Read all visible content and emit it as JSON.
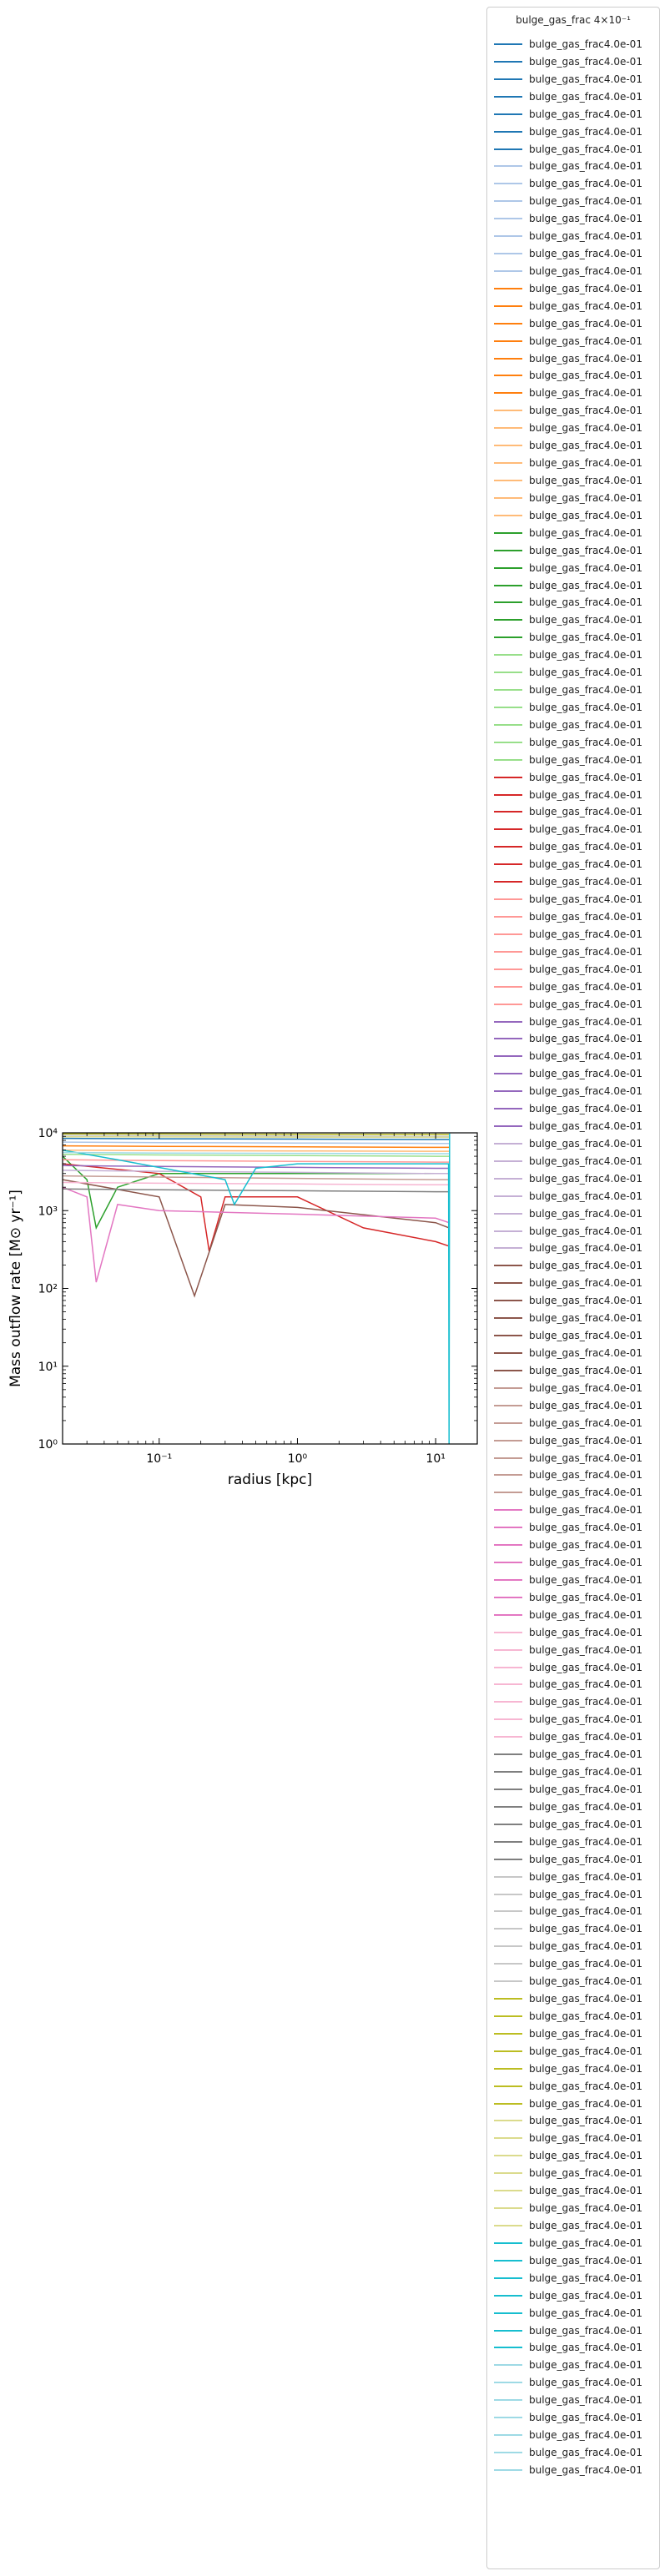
{
  "chart_data": {
    "type": "line",
    "xlabel": "radius [kpc]",
    "ylabel": "Mass outflow rate [M⊙ yr⁻¹]",
    "x_scale": "log",
    "y_scale": "log",
    "xlim": [
      0.02,
      20
    ],
    "ylim": [
      1,
      10000
    ],
    "x_tick_labels": [
      "10⁻¹",
      "10⁰",
      "10¹"
    ],
    "y_tick_labels": [
      "10⁰",
      "10¹",
      "10²",
      "10³",
      "10⁴"
    ],
    "legend": {
      "title": "bulge_gas_frac 4×10⁻¹",
      "placement": "outside right",
      "entry_label": "bulge_gas_frac4.0e-01",
      "entry_count": 140
    },
    "palette": [
      "#1f77b4",
      "#aec7e8",
      "#ff7f0e",
      "#ffbb78",
      "#2ca02c",
      "#98df8a",
      "#d62728",
      "#ff9896",
      "#9467bd",
      "#c5b0d5",
      "#8c564b",
      "#c49c94",
      "#e377c2",
      "#f7b6d2",
      "#7f7f7f",
      "#c7c7c7",
      "#bcbd22",
      "#dbdb8d",
      "#17becf",
      "#9edae5"
    ],
    "series": [
      {
        "color": "#1f77b4",
        "x": [
          0.02,
          0.1,
          1,
          10,
          12.5
        ],
        "y": [
          8500,
          8400,
          8300,
          8200,
          8200
        ]
      },
      {
        "color": "#aec7e8",
        "x": [
          0.02,
          0.1,
          1,
          10,
          12.5
        ],
        "y": [
          7600,
          7500,
          7400,
          7300,
          7300
        ]
      },
      {
        "color": "#ff7f0e",
        "x": [
          0.02,
          0.1,
          1,
          10,
          12.5
        ],
        "y": [
          6800,
          6700,
          6600,
          6500,
          6500
        ]
      },
      {
        "color": "#ffbb78",
        "x": [
          0.02,
          0.1,
          1,
          10,
          12.5
        ],
        "y": [
          6000,
          5900,
          5850,
          5800,
          5800
        ]
      },
      {
        "color": "#2ca02c",
        "x": [
          0.02,
          0.03,
          0.035,
          0.05,
          0.1,
          1,
          10,
          12.5
        ],
        "y": [
          5000,
          2500,
          600,
          2000,
          3000,
          3000,
          3000,
          3000
        ]
      },
      {
        "color": "#98df8a",
        "x": [
          0.02,
          0.1,
          1,
          10,
          12.5
        ],
        "y": [
          5300,
          5200,
          5100,
          5000,
          5000
        ]
      },
      {
        "color": "#d62728",
        "x": [
          0.02,
          0.1,
          0.2,
          0.23,
          0.3,
          1,
          3,
          10,
          12.5
        ],
        "y": [
          4000,
          3000,
          1500,
          300,
          1500,
          1500,
          600,
          400,
          350
        ]
      },
      {
        "color": "#ff9896",
        "x": [
          0.02,
          0.1,
          1,
          10,
          12.5
        ],
        "y": [
          4500,
          4400,
          4300,
          4200,
          4200
        ]
      },
      {
        "color": "#9467bd",
        "x": [
          0.02,
          0.1,
          1,
          10,
          12.5
        ],
        "y": [
          3800,
          3700,
          3600,
          3500,
          3500
        ]
      },
      {
        "color": "#c5b0d5",
        "x": [
          0.02,
          0.1,
          1,
          10,
          12.5
        ],
        "y": [
          3300,
          3200,
          3100,
          3000,
          3000
        ]
      },
      {
        "color": "#8c564b",
        "x": [
          0.02,
          0.1,
          0.18,
          0.3,
          1,
          10,
          12.5
        ],
        "y": [
          2500,
          1500,
          80,
          1200,
          1100,
          700,
          600
        ]
      },
      {
        "color": "#c49c94",
        "x": [
          0.02,
          0.1,
          1,
          10,
          12.5
        ],
        "y": [
          2800,
          2700,
          2600,
          2500,
          2500
        ]
      },
      {
        "color": "#e377c2",
        "x": [
          0.02,
          0.03,
          0.035,
          0.05,
          0.1,
          1,
          10,
          12.5
        ],
        "y": [
          2000,
          1500,
          120,
          1200,
          1000,
          900,
          800,
          700
        ]
      },
      {
        "color": "#f7b6d2",
        "x": [
          0.02,
          0.1,
          1,
          10,
          12.5
        ],
        "y": [
          2300,
          2250,
          2200,
          2150,
          2150
        ]
      },
      {
        "color": "#7f7f7f",
        "x": [
          0.02,
          0.1,
          1,
          10,
          12.5
        ],
        "y": [
          1900,
          1850,
          1800,
          1750,
          1750
        ]
      },
      {
        "color": "#c7c7c7",
        "x": [
          0.02,
          0.1,
          1,
          10,
          12.5
        ],
        "y": [
          9300,
          9200,
          9100,
          9000,
          9000
        ]
      },
      {
        "color": "#bcbd22",
        "x": [
          0.02,
          0.1,
          1,
          10,
          12.5
        ],
        "y": [
          9700,
          9650,
          9600,
          9550,
          9550
        ]
      },
      {
        "color": "#dbdb8d",
        "x": [
          0.02,
          0.1,
          1,
          10,
          12.5
        ],
        "y": [
          8900,
          8850,
          8800,
          8750,
          8750
        ]
      },
      {
        "color": "#17becf",
        "x": [
          0.02,
          0.05,
          0.3,
          0.35,
          0.5,
          1,
          10,
          12.4,
          12.5,
          12.6
        ],
        "y": [
          6000,
          4500,
          2500,
          1200,
          3500,
          4000,
          4000,
          4000,
          1,
          9800
        ]
      },
      {
        "color": "#9edae5",
        "x": [
          0.02,
          0.1,
          1,
          10,
          12.5
        ],
        "y": [
          5600,
          5500,
          5450,
          5400,
          5400
        ]
      }
    ]
  }
}
